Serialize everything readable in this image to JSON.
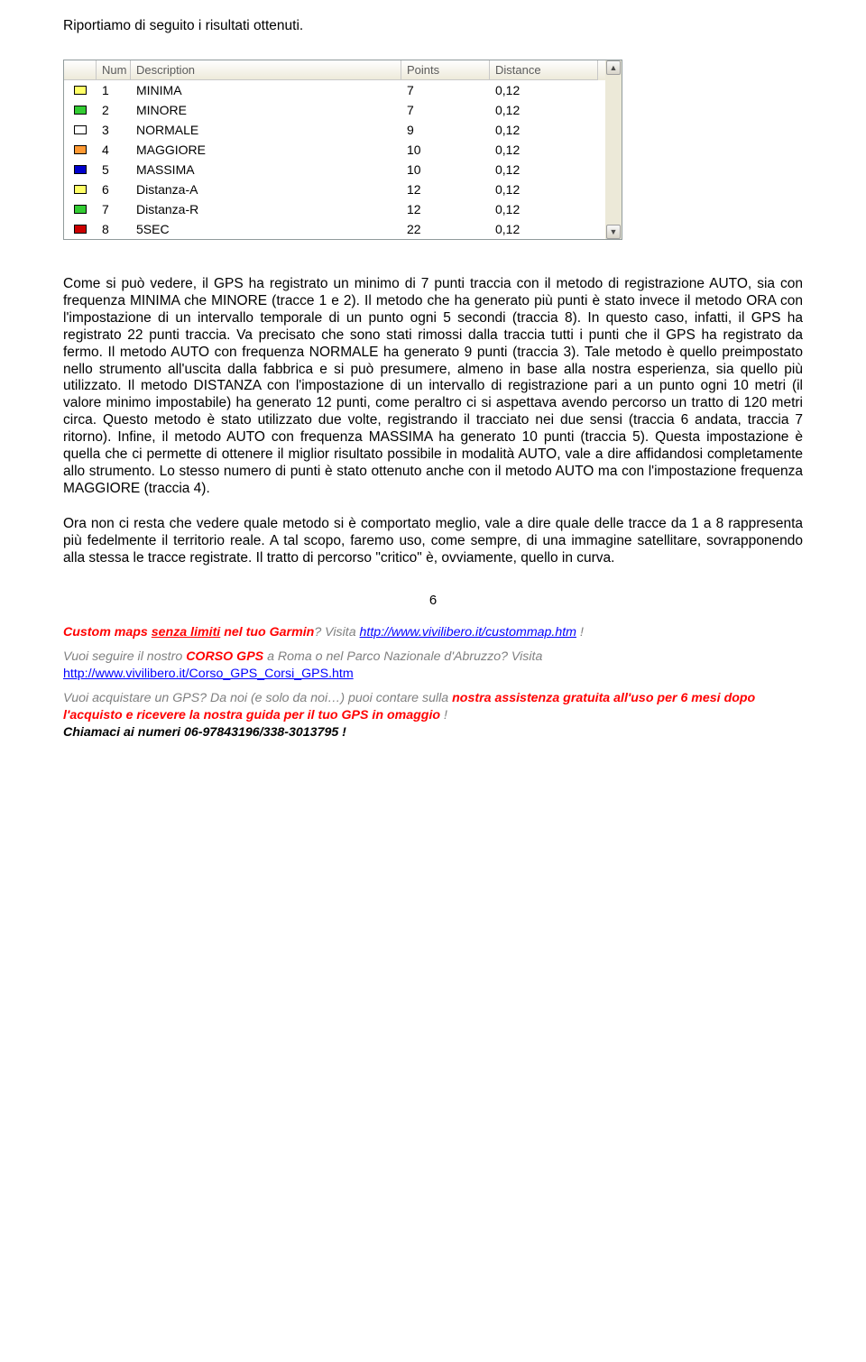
{
  "intro": "Riportiamo di seguito i risultati ottenuti.",
  "table": {
    "headers": {
      "num": "Num",
      "desc": "Description",
      "points": "Points",
      "dist": "Distance"
    },
    "rows": [
      {
        "color": "#ffff66",
        "num": "1",
        "desc": "MINIMA",
        "points": "7",
        "dist": "0,12"
      },
      {
        "color": "#33cc33",
        "num": "2",
        "desc": "MINORE",
        "points": "7",
        "dist": "0,12"
      },
      {
        "color": "#ffffff",
        "num": "3",
        "desc": "NORMALE",
        "points": "9",
        "dist": "0,12"
      },
      {
        "color": "#ff9933",
        "num": "4",
        "desc": "MAGGIORE",
        "points": "10",
        "dist": "0,12"
      },
      {
        "color": "#0000cc",
        "num": "5",
        "desc": "MASSIMA",
        "points": "10",
        "dist": "0,12"
      },
      {
        "color": "#ffff66",
        "num": "6",
        "desc": "Distanza-A",
        "points": "12",
        "dist": "0,12"
      },
      {
        "color": "#33cc33",
        "num": "7",
        "desc": "Distanza-R",
        "points": "12",
        "dist": "0,12"
      },
      {
        "color": "#cc0000",
        "num": "8",
        "desc": "5SEC",
        "points": "22",
        "dist": "0,12"
      }
    ]
  },
  "para1": "Come si può vedere, il GPS ha registrato un minimo di 7 punti traccia con il metodo di registrazione AUTO, sia con frequenza MINIMA che MINORE (tracce 1 e 2). Il metodo che ha generato più punti è stato invece il metodo ORA con l'impostazione di un intervallo temporale di un punto ogni 5 secondi (traccia 8). In questo caso, infatti, il GPS ha registrato 22 punti traccia. Va precisato che sono stati rimossi dalla traccia tutti i punti che il GPS ha registrato da fermo. Il metodo AUTO con frequenza NORMALE ha generato 9 punti (traccia 3). Tale metodo è quello preimpostato nello strumento all'uscita dalla fabbrica e si può presumere, almeno in base alla nostra esperienza, sia quello più utilizzato. Il metodo DISTANZA con l'impostazione di un intervallo di registrazione pari a un punto ogni 10 metri (il valore minimo impostabile) ha generato 12 punti, come peraltro ci si aspettava avendo percorso un tratto di 120 metri circa. Questo metodo è stato utilizzato due volte, registrando il tracciato nei due sensi (traccia 6 andata, traccia 7 ritorno). Infine, il metodo AUTO con frequenza MASSIMA ha generato 10 punti (traccia 5). Questa impostazione è quella che ci permette di ottenere il miglior risultato possibile in modalità AUTO, vale a dire affidandosi completamente allo strumento. Lo stesso numero di punti è stato ottenuto anche con il metodo AUTO ma con l'impostazione frequenza MAGGIORE (traccia 4).",
  "para2": "Ora non ci resta che vedere quale metodo si è comportato meglio, vale a dire quale delle tracce da 1 a 8 rappresenta più fedelmente il territorio reale. A tal scopo, faremo uso, come sempre, di una immagine satellitare, sovrapponendo alla stessa le tracce registrate. Il tratto di percorso \"critico\" è, ovviamente, quello in curva.",
  "pageNumber": "6",
  "footer": {
    "l1a": "Custom maps ",
    "l1b": "senza limiti",
    "l1c": " nel tuo Garmin",
    "l1d": "? Visita  ",
    "l1link": "http://www.vivilibero.it/custommap.htm",
    "l1e": " !",
    "l2a": "Vuoi seguire il nostro ",
    "l2b": "CORSO GPS",
    "l2c": " a Roma o nel Parco Nazionale d'Abruzzo? Visita",
    "l2link": "http://www.vivilibero.it/Corso_GPS_Corsi_GPS.htm",
    "l3a": "Vuoi acquistare un GPS? Da noi (e solo da noi…) puoi contare sulla ",
    "l3b": "nostra assistenza gratuita all'uso per 6 mesi dopo l'acquisto e ricevere la nostra guida per il tuo GPS in omaggio",
    "l3c": " !",
    "l3d": "Chiamaci ai numeri  06-97843196/338-3013795 !"
  }
}
